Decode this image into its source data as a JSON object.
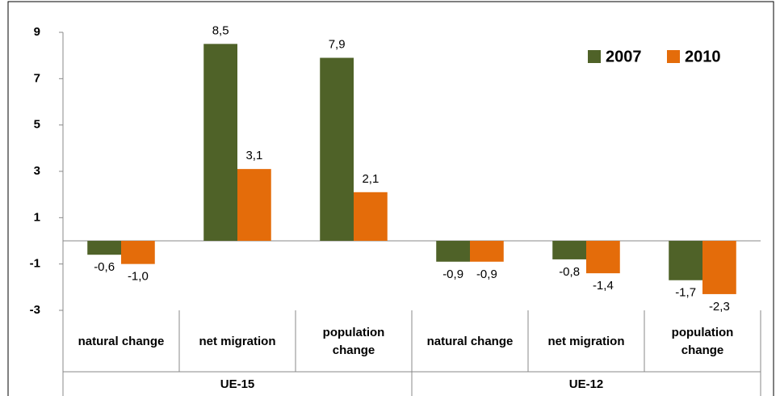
{
  "chart_data": {
    "type": "bar",
    "categories": [
      "natural change",
      "net migration",
      "population change",
      "natural change",
      "net migration",
      "population change"
    ],
    "groups": [
      "UE-15",
      "UE-12"
    ],
    "series": [
      {
        "name": "2007",
        "color": "#4f6228",
        "values": [
          -0.6,
          8.5,
          7.9,
          -0.9,
          -0.8,
          -1.7
        ],
        "value_labels": [
          "-0,6",
          "8,5",
          "7,9",
          "-0,9",
          "-0,8",
          "-1,7"
        ]
      },
      {
        "name": "2010",
        "color": "#e46c0a",
        "values": [
          -1.0,
          3.1,
          2.1,
          -0.9,
          -1.4,
          -2.3
        ],
        "value_labels": [
          "-1,0",
          "3,1",
          "2,1",
          "-0,9",
          "-1,4",
          "-2,3"
        ]
      }
    ],
    "ylim": [
      -3,
      9
    ],
    "yticks": [
      9,
      7,
      5,
      3,
      1,
      -1,
      -3
    ],
    "grid": false,
    "legend": "top-right"
  }
}
